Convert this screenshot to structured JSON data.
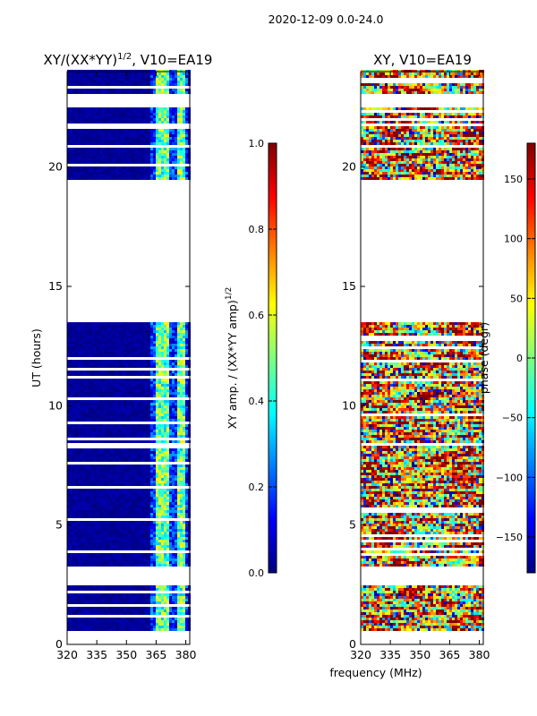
{
  "figure_title": "2020-12-09 0.0-24.0",
  "colors": {
    "jet": [
      "#00007f",
      "#0000ff",
      "#007fff",
      "#00ffff",
      "#7fff7f",
      "#ffff00",
      "#ff7f00",
      "#ff0000",
      "#7f0000"
    ],
    "background": "#ffffff",
    "axis": "#000000"
  },
  "chart_data": [
    {
      "type": "heatmap",
      "name": "amplitude-ratio",
      "title": "XY/(XX*YY)^1/2, V10=EA19",
      "title_main": "XY/(XX*YY)",
      "title_sup": "1/2",
      "title_tail": ", V10=EA19",
      "xlabel": "",
      "ylabel": "UT (hours)",
      "xlim": [
        320,
        382
      ],
      "ylim": [
        0,
        24
      ],
      "xticks": [
        320,
        335,
        350,
        365,
        380
      ],
      "yticks": [
        0,
        5,
        10,
        15,
        20
      ],
      "colorbar": {
        "label": "XY amp. / (XX*YY amp)^1/2",
        "label_main": "XY amp. / (XX*YY amp)",
        "label_sup": "1/2",
        "range": [
          0.0,
          1.0
        ],
        "ticks": [
          "0.0",
          "0.2",
          "0.4",
          "0.6",
          "0.8",
          "1.0"
        ]
      },
      "data_time_blocks_hours": [
        [
          0.5,
          2.5
        ],
        [
          3.2,
          13.5
        ],
        [
          19.5,
          22.5
        ],
        [
          23.0,
          24.0
        ]
      ],
      "features": "mostly near-zero amplitude (dark blue); bright vertical bands (0.3-0.6) at 364-368 MHz, 369-372 MHz and 375-379 MHz"
    },
    {
      "type": "heatmap",
      "name": "phase",
      "title": "XY, V10=EA19",
      "xlabel": "frequency (MHz)",
      "ylabel": "",
      "xlim": [
        320,
        382
      ],
      "ylim": [
        0,
        24
      ],
      "xticks": [
        320,
        335,
        350,
        365,
        380
      ],
      "yticks": [
        0,
        5,
        10,
        15,
        20
      ],
      "colorbar": {
        "label": "phase (degr)",
        "range": [
          -180,
          180
        ],
        "ticks": [
          "150",
          "100",
          "50",
          "0",
          "−50",
          "−100",
          "−150"
        ]
      },
      "data_time_blocks_hours": [
        [
          0.5,
          2.5
        ],
        [
          3.2,
          13.5
        ],
        [
          19.5,
          22.5
        ],
        [
          23.0,
          24.0
        ]
      ],
      "features": "phase varies widely between -180 and 180 degrees, mostly red/yellow with blue-green patches"
    }
  ]
}
